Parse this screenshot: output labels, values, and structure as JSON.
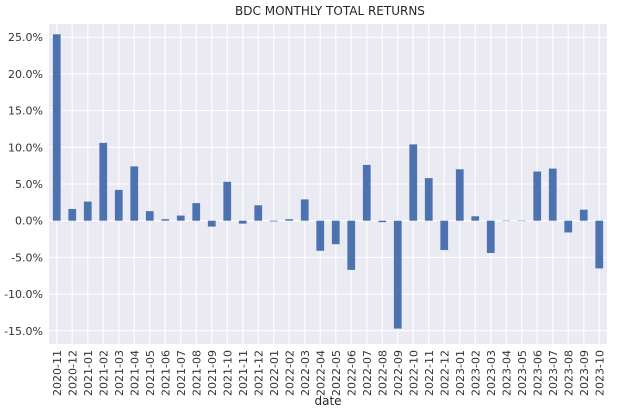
{
  "chart_data": {
    "type": "bar",
    "title": "BDC MONTHLY TOTAL RETURNS",
    "xlabel": "date",
    "ylabel": "",
    "ylim": [
      -0.168,
      0.268
    ],
    "yticks": [
      -0.15,
      -0.1,
      -0.05,
      0.0,
      0.05,
      0.1,
      0.15,
      0.2,
      0.25
    ],
    "ytick_labels": [
      "-15.0%",
      "-10.0%",
      "-5.0%",
      "0.0%",
      "5.0%",
      "10.0%",
      "15.0%",
      "20.0%",
      "25.0%"
    ],
    "grid": true,
    "categories": [
      "2020-11",
      "2020-12",
      "2021-01",
      "2021-02",
      "2021-03",
      "2021-04",
      "2021-05",
      "2021-06",
      "2021-07",
      "2021-08",
      "2021-09",
      "2021-10",
      "2021-11",
      "2021-12",
      "2022-01",
      "2022-02",
      "2022-03",
      "2022-04",
      "2022-05",
      "2022-06",
      "2022-07",
      "2022-08",
      "2022-09",
      "2022-10",
      "2022-11",
      "2022-12",
      "2023-01",
      "2023-02",
      "2023-03",
      "2023-04",
      "2023-05",
      "2023-06",
      "2023-07",
      "2023-08",
      "2023-09",
      "2023-10"
    ],
    "values": [
      0.254,
      0.016,
      0.026,
      0.106,
      0.042,
      0.074,
      0.013,
      0.002,
      0.007,
      0.024,
      -0.008,
      0.053,
      -0.004,
      0.021,
      -0.001,
      0.002,
      0.029,
      -0.041,
      -0.032,
      -0.067,
      0.076,
      -0.002,
      -0.147,
      0.104,
      0.058,
      -0.04,
      0.07,
      0.006,
      -0.044,
      0.0,
      0.0,
      0.067,
      0.071,
      -0.016,
      0.015,
      -0.065
    ],
    "bar_color": "#4c72b0",
    "background_color": "#eaeaf2",
    "grid_color": "#ffffff"
  }
}
